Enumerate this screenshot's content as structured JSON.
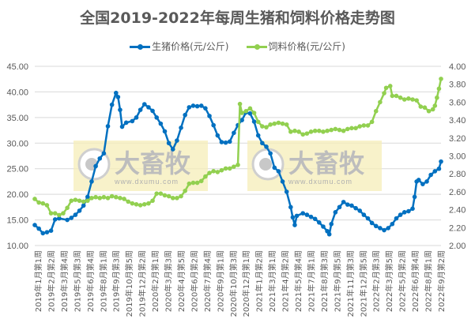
{
  "chart_data": {
    "type": "line",
    "title": "全国2019-2022年每周生猪和饲料价格走势图",
    "xlabel": "",
    "ylabel_left": "",
    "ylabel_right": "",
    "ylim_left": [
      10,
      45
    ],
    "ylim_right": [
      2.0,
      4.0
    ],
    "yticks_left": [
      "45.00",
      "40.00",
      "35.00",
      "30.00",
      "25.00",
      "20.00",
      "15.00",
      "10.00"
    ],
    "yticks_right": [
      "4.00",
      "3.80",
      "3.60",
      "3.40",
      "3.20",
      "3.00",
      "2.80",
      "2.60",
      "2.40",
      "2.20",
      "2.00"
    ],
    "grid": true,
    "legend_position": "top",
    "categories": [
      "2019年1月第1周",
      "2019年2月第2周",
      "2019年3月第4周",
      "2019年5月第3周",
      "2019年6月第4周",
      "2019年8月第1周",
      "2019年9月第3周",
      "2019年10月第5周",
      "2019年12月第2周",
      "2020年2月第1周",
      "2020年3月第3周",
      "2020年4月第5周",
      "2020年6月第2周",
      "2020年7月第4周",
      "2020年9月第1周",
      "2020年10月第3周",
      "2020年12月第1周",
      "2021年1月第2周",
      "2021年3月第1周",
      "2021年4月第2周",
      "2021年5月第4周",
      "2021年7月第1周",
      "2021年8月第3周",
      "2021年9月第5周",
      "2021年11月第3周",
      "2021年12月第5周",
      "2022年2月第3周",
      "2022年3月第5周",
      "2022年5月第2周",
      "2022年6月第4周",
      "2022年8月第1周",
      "2022年9月第2周"
    ],
    "series": [
      {
        "name": "生猪价格(元/公斤)",
        "axis": "left",
        "color": "#0070C0",
        "points_frac_value": [
          [
            0,
            14.0
          ],
          [
            0.01,
            13.3
          ],
          [
            0.02,
            12.4
          ],
          [
            0.03,
            12.6
          ],
          [
            0.04,
            12.9
          ],
          [
            0.05,
            15.1
          ],
          [
            0.06,
            15.3
          ],
          [
            0.08,
            15.0
          ],
          [
            0.09,
            15.4
          ],
          [
            0.1,
            16.0
          ],
          [
            0.11,
            16.8
          ],
          [
            0.12,
            17.8
          ],
          [
            0.13,
            19.5
          ],
          [
            0.14,
            22.5
          ],
          [
            0.15,
            25.5
          ],
          [
            0.16,
            27.0
          ],
          [
            0.17,
            28.0
          ],
          [
            0.18,
            33.3
          ],
          [
            0.19,
            37.5
          ],
          [
            0.2,
            39.8
          ],
          [
            0.205,
            39.0
          ],
          [
            0.21,
            36.5
          ],
          [
            0.215,
            33.2
          ],
          [
            0.225,
            34.0
          ],
          [
            0.24,
            34.3
          ],
          [
            0.25,
            35.0
          ],
          [
            0.26,
            36.5
          ],
          [
            0.27,
            37.6
          ],
          [
            0.28,
            37.0
          ],
          [
            0.29,
            36.3
          ],
          [
            0.3,
            35.0
          ],
          [
            0.31,
            33.8
          ],
          [
            0.32,
            32.3
          ],
          [
            0.33,
            30.0
          ],
          [
            0.34,
            28.8
          ],
          [
            0.35,
            30.5
          ],
          [
            0.36,
            33.0
          ],
          [
            0.37,
            35.5
          ],
          [
            0.38,
            37.0
          ],
          [
            0.39,
            37.3
          ],
          [
            0.4,
            37.2
          ],
          [
            0.41,
            37.3
          ],
          [
            0.42,
            36.8
          ],
          [
            0.43,
            35.3
          ],
          [
            0.44,
            33.5
          ],
          [
            0.45,
            31.5
          ],
          [
            0.46,
            30.2
          ],
          [
            0.47,
            30.1
          ],
          [
            0.48,
            30.3
          ],
          [
            0.49,
            32.0
          ],
          [
            0.5,
            33.5
          ],
          [
            0.51,
            34.5
          ],
          [
            0.52,
            36.0
          ],
          [
            0.53,
            35.8
          ],
          [
            0.54,
            34.2
          ],
          [
            0.55,
            31.5
          ],
          [
            0.56,
            30.0
          ],
          [
            0.57,
            29.3
          ],
          [
            0.58,
            28.0
          ],
          [
            0.59,
            25.2
          ],
          [
            0.6,
            24.5
          ],
          [
            0.61,
            22.5
          ],
          [
            0.62,
            20.5
          ],
          [
            0.63,
            17.5
          ],
          [
            0.635,
            15.5
          ],
          [
            0.64,
            14.0
          ],
          [
            0.645,
            15.8
          ],
          [
            0.66,
            16.3
          ],
          [
            0.67,
            16.0
          ],
          [
            0.68,
            15.6
          ],
          [
            0.69,
            15.2
          ],
          [
            0.7,
            14.5
          ],
          [
            0.71,
            13.7
          ],
          [
            0.72,
            12.8
          ],
          [
            0.725,
            12.2
          ],
          [
            0.73,
            14.2
          ],
          [
            0.74,
            16.5
          ],
          [
            0.75,
            17.5
          ],
          [
            0.76,
            18.5
          ],
          [
            0.77,
            18.0
          ],
          [
            0.78,
            17.8
          ],
          [
            0.79,
            17.3
          ],
          [
            0.8,
            16.8
          ],
          [
            0.81,
            16.0
          ],
          [
            0.82,
            15.3
          ],
          [
            0.83,
            14.4
          ],
          [
            0.84,
            13.8
          ],
          [
            0.85,
            13.4
          ],
          [
            0.86,
            13.0
          ],
          [
            0.87,
            13.4
          ],
          [
            0.88,
            14.2
          ],
          [
            0.89,
            15.3
          ],
          [
            0.9,
            16.0
          ],
          [
            0.91,
            16.5
          ],
          [
            0.92,
            16.7
          ],
          [
            0.93,
            17.2
          ],
          [
            0.935,
            19.5
          ],
          [
            0.94,
            22.5
          ],
          [
            0.945,
            22.8
          ],
          [
            0.955,
            22.0
          ],
          [
            0.965,
            22.5
          ],
          [
            0.975,
            23.8
          ],
          [
            0.985,
            24.5
          ],
          [
            0.995,
            25.0
          ],
          [
            1.0,
            26.4
          ]
        ]
      },
      {
        "name": "饲料价格(元/公斤)",
        "axis": "right",
        "color": "#92D050",
        "points_frac_value": [
          [
            0,
            2.52
          ],
          [
            0.01,
            2.48
          ],
          [
            0.02,
            2.47
          ],
          [
            0.03,
            2.45
          ],
          [
            0.04,
            2.36
          ],
          [
            0.05,
            2.36
          ],
          [
            0.06,
            2.34
          ],
          [
            0.07,
            2.36
          ],
          [
            0.08,
            2.42
          ],
          [
            0.09,
            2.5
          ],
          [
            0.1,
            2.51
          ],
          [
            0.11,
            2.5
          ],
          [
            0.12,
            2.49
          ],
          [
            0.13,
            2.5
          ],
          [
            0.14,
            2.53
          ],
          [
            0.15,
            2.54
          ],
          [
            0.16,
            2.53
          ],
          [
            0.17,
            2.54
          ],
          [
            0.18,
            2.53
          ],
          [
            0.19,
            2.55
          ],
          [
            0.2,
            2.54
          ],
          [
            0.21,
            2.53
          ],
          [
            0.22,
            2.52
          ],
          [
            0.23,
            2.49
          ],
          [
            0.24,
            2.47
          ],
          [
            0.25,
            2.46
          ],
          [
            0.26,
            2.45
          ],
          [
            0.27,
            2.46
          ],
          [
            0.28,
            2.47
          ],
          [
            0.29,
            2.5
          ],
          [
            0.3,
            2.58
          ],
          [
            0.31,
            2.58
          ],
          [
            0.32,
            2.56
          ],
          [
            0.33,
            2.55
          ],
          [
            0.34,
            2.53
          ],
          [
            0.35,
            2.53
          ],
          [
            0.36,
            2.55
          ],
          [
            0.37,
            2.61
          ],
          [
            0.38,
            2.69
          ],
          [
            0.39,
            2.7
          ],
          [
            0.4,
            2.7
          ],
          [
            0.41,
            2.72
          ],
          [
            0.42,
            2.77
          ],
          [
            0.43,
            2.81
          ],
          [
            0.44,
            2.83
          ],
          [
            0.45,
            2.82
          ],
          [
            0.46,
            2.84
          ],
          [
            0.47,
            2.86
          ],
          [
            0.48,
            2.86
          ],
          [
            0.49,
            2.88
          ],
          [
            0.5,
            2.9
          ],
          [
            0.505,
            3.58
          ],
          [
            0.51,
            3.48
          ],
          [
            0.52,
            3.5
          ],
          [
            0.53,
            3.53
          ],
          [
            0.54,
            3.48
          ],
          [
            0.55,
            3.38
          ],
          [
            0.56,
            3.33
          ],
          [
            0.57,
            3.32
          ],
          [
            0.58,
            3.35
          ],
          [
            0.59,
            3.36
          ],
          [
            0.6,
            3.37
          ],
          [
            0.61,
            3.36
          ],
          [
            0.62,
            3.35
          ],
          [
            0.63,
            3.27
          ],
          [
            0.64,
            3.28
          ],
          [
            0.65,
            3.27
          ],
          [
            0.66,
            3.24
          ],
          [
            0.67,
            3.25
          ],
          [
            0.68,
            3.27
          ],
          [
            0.69,
            3.28
          ],
          [
            0.7,
            3.28
          ],
          [
            0.71,
            3.27
          ],
          [
            0.72,
            3.28
          ],
          [
            0.73,
            3.29
          ],
          [
            0.74,
            3.3
          ],
          [
            0.75,
            3.29
          ],
          [
            0.76,
            3.28
          ],
          [
            0.77,
            3.3
          ],
          [
            0.78,
            3.31
          ],
          [
            0.79,
            3.31
          ],
          [
            0.8,
            3.33
          ],
          [
            0.81,
            3.34
          ],
          [
            0.82,
            3.34
          ],
          [
            0.83,
            3.38
          ],
          [
            0.84,
            3.5
          ],
          [
            0.85,
            3.6
          ],
          [
            0.86,
            3.7
          ],
          [
            0.865,
            3.76
          ],
          [
            0.875,
            3.78
          ],
          [
            0.88,
            3.67
          ],
          [
            0.89,
            3.67
          ],
          [
            0.9,
            3.65
          ],
          [
            0.91,
            3.63
          ],
          [
            0.92,
            3.64
          ],
          [
            0.93,
            3.63
          ],
          [
            0.94,
            3.62
          ],
          [
            0.95,
            3.55
          ],
          [
            0.96,
            3.54
          ],
          [
            0.97,
            3.5
          ],
          [
            0.98,
            3.52
          ],
          [
            0.985,
            3.56
          ],
          [
            0.99,
            3.65
          ],
          [
            0.995,
            3.75
          ],
          [
            1.0,
            3.86
          ]
        ]
      }
    ]
  },
  "header": {
    "title": "全国2019-2022年每周生猪和饲料价格走势图"
  },
  "legend": {
    "items": [
      {
        "label": "生猪价格(元/公斤)",
        "color": "#0070C0"
      },
      {
        "label": "饲料价格(元/公斤)",
        "color": "#92D050"
      }
    ]
  },
  "watermark": {
    "text": "大畜牧",
    "url_text": "www.dxumu.com"
  }
}
